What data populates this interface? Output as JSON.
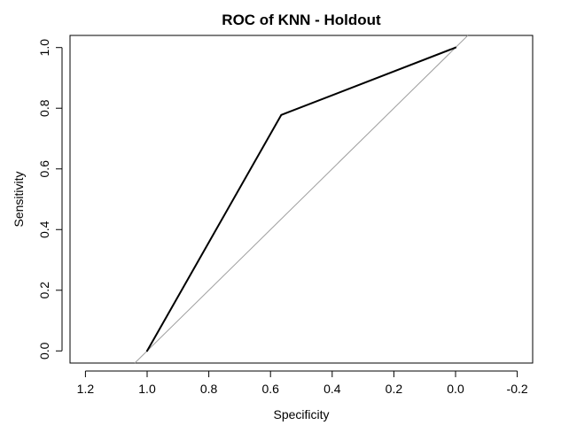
{
  "chart_data": {
    "type": "line",
    "title": "ROC of KNN - Holdout",
    "xlabel": "Specificity",
    "ylabel": "Sensitivity",
    "x_reversed": true,
    "xlim": [
      1.25,
      -0.25
    ],
    "ylim": [
      -0.04,
      1.04
    ],
    "x_ticks": [
      1.2,
      1.0,
      0.8,
      0.6,
      0.4,
      0.2,
      0.0,
      -0.2
    ],
    "x_tick_labels": [
      "1.2",
      "1.0",
      "0.8",
      "0.6",
      "0.4",
      "0.2",
      "0.0",
      "-0.2"
    ],
    "y_ticks": [
      0.0,
      0.2,
      0.4,
      0.6,
      0.8,
      1.0
    ],
    "y_tick_labels": [
      "0.0",
      "0.2",
      "0.4",
      "0.6",
      "0.8",
      "1.0"
    ],
    "grid": false,
    "series": [
      {
        "role": "roc-curve",
        "color": "#000000",
        "x": [
          1.0,
          0.565,
          0.0
        ],
        "y": [
          0.0,
          0.778,
          1.0
        ]
      }
    ],
    "reference_line": {
      "role": "chance-diagonal",
      "color": "#9e9e9e",
      "description": "identity line sensitivity = 1 - specificity"
    }
  }
}
